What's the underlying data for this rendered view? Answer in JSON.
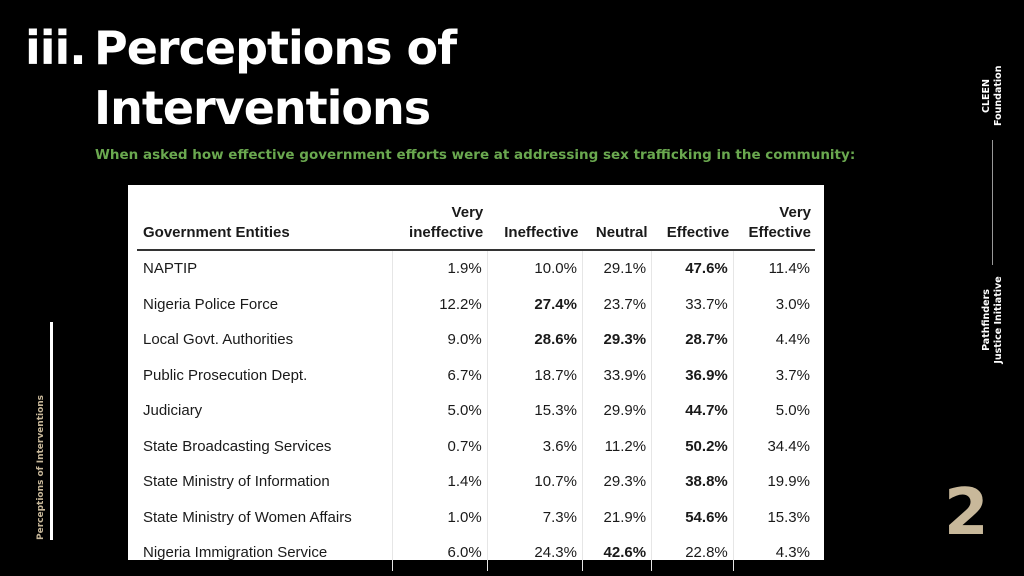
{
  "heading": {
    "number": "iii.",
    "line1": "Perceptions of",
    "line2": "Interventions"
  },
  "subtitle": "When asked how effective  government efforts were at addressing sex trafficking in the community:",
  "table": {
    "headers": {
      "entity": "Government Entities",
      "very_ineffective_1": "Very",
      "very_ineffective_2": "ineffective",
      "ineffective": "Ineffective",
      "neutral": "Neutral",
      "effective": "Effective",
      "very_effective_1": "Very",
      "very_effective_2": "Effective"
    },
    "rows": [
      {
        "entity": "NAPTIP",
        "vi": "1.9%",
        "i": "10.0%",
        "n": "29.1%",
        "e": "47.6%",
        "ve": "11.4%"
      },
      {
        "entity": "Nigeria Police Force",
        "vi": "12.2%",
        "i": "27.4%",
        "n": "23.7%",
        "e": "33.7%",
        "ve": "3.0%"
      },
      {
        "entity": "Local Govt. Authorities",
        "vi": "9.0%",
        "i": "28.6%",
        "n": "29.3%",
        "e": "28.7%",
        "ve": "4.4%"
      },
      {
        "entity": "Public Prosecution Dept.",
        "vi": "6.7%",
        "i": "18.7%",
        "n": "33.9%",
        "e": "36.9%",
        "ve": "3.7%"
      },
      {
        "entity": "Judiciary",
        "vi": "5.0%",
        "i": "15.3%",
        "n": "29.9%",
        "e": "44.7%",
        "ve": "5.0%"
      },
      {
        "entity": "State Broadcasting Services",
        "vi": "0.7%",
        "i": "3.6%",
        "n": "11.2%",
        "e": "50.2%",
        "ve": "34.4%"
      },
      {
        "entity": "State Ministry of Information",
        "vi": "1.4%",
        "i": "10.7%",
        "n": "29.3%",
        "e": "38.8%",
        "ve": "19.9%"
      },
      {
        "entity": "State Ministry of Women Affairs",
        "vi": "1.0%",
        "i": "7.3%",
        "n": "21.9%",
        "e": "54.6%",
        "ve": "15.3%"
      },
      {
        "entity": "Nigeria Immigration Service",
        "vi": "6.0%",
        "i": "24.3%",
        "n": "42.6%",
        "e": "22.8%",
        "ve": "4.3%"
      }
    ]
  },
  "sidebar_label": "Perceptions of Interventions",
  "right_labels": {
    "org1_line1": "CLEEN",
    "org1_line2": "Foundation",
    "org2_line1": "Pathfinders",
    "org2_line2": "Justice Initiative"
  },
  "page_number": "2",
  "colors": {
    "subtitle": "#6aa84f",
    "accent": "#c8b89a",
    "background": "#000000"
  }
}
